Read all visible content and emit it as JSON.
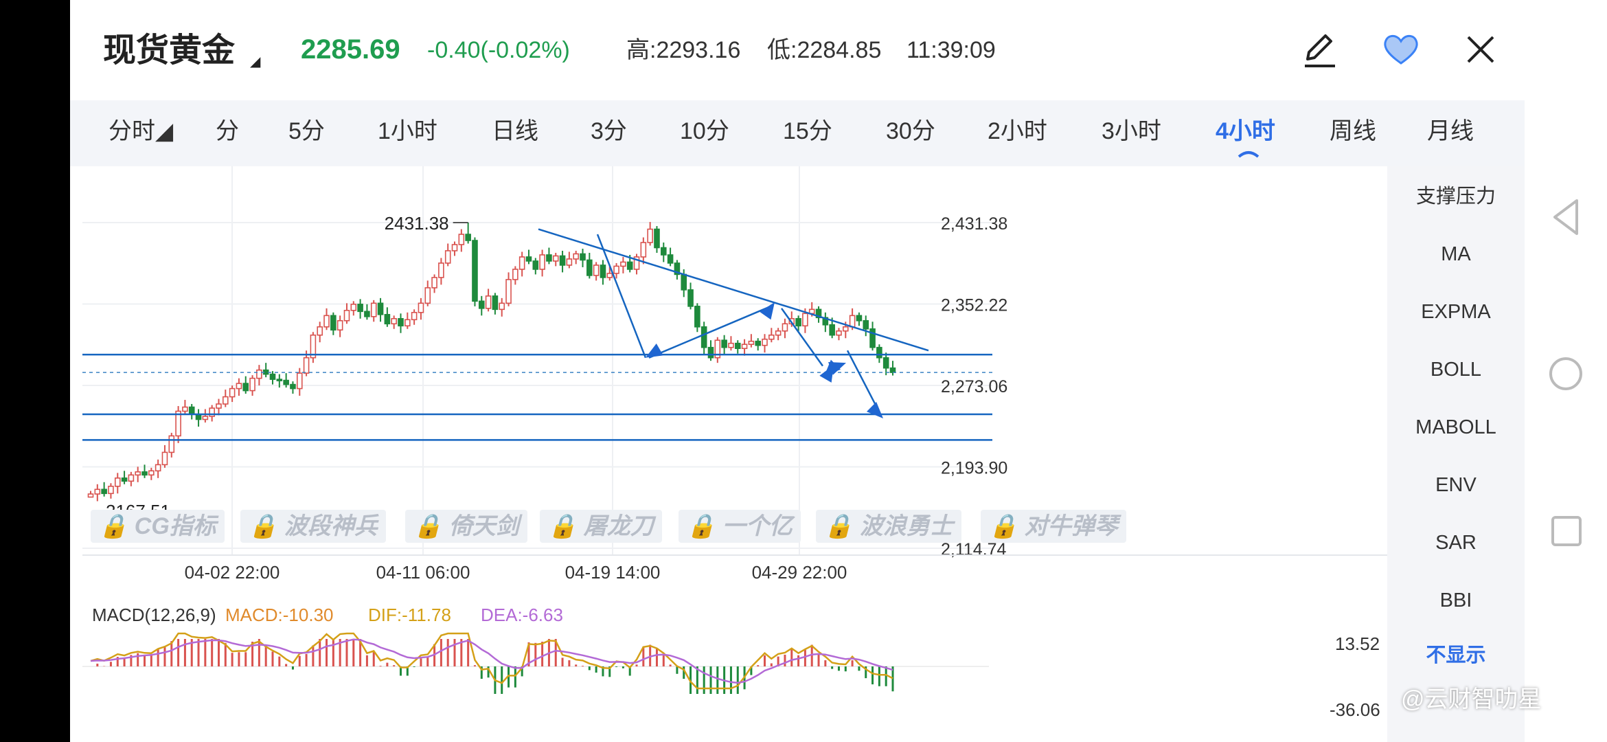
{
  "header": {
    "title": "现货黄金",
    "title_caret": "◢",
    "price": "2285.69",
    "change": "-0.40(-0.02%)",
    "high": "高:2293.16",
    "low": "低:2284.85",
    "time": "11:39:09",
    "icons": [
      "edit-icon",
      "heart-icon",
      "close-icon"
    ],
    "up_color": "#1f9d4f"
  },
  "tabs": [
    {
      "label": "分时◢",
      "active": false
    },
    {
      "label": "分",
      "active": false
    },
    {
      "label": "5分",
      "active": false
    },
    {
      "label": "1小时",
      "active": false
    },
    {
      "label": "日线",
      "active": false
    },
    {
      "label": "3分",
      "active": false
    },
    {
      "label": "10分",
      "active": false
    },
    {
      "label": "15分",
      "active": false
    },
    {
      "label": "30分",
      "active": false
    },
    {
      "label": "2小时",
      "active": false
    },
    {
      "label": "3小时",
      "active": false
    },
    {
      "label": "4小时",
      "active": true
    },
    {
      "label": "周线",
      "active": false
    },
    {
      "label": "月线",
      "active": false
    }
  ],
  "indicator_chips": [
    "CG指标",
    "波段神兵",
    "倚天剑",
    "屠龙刀",
    "一个亿",
    "波浪勇士",
    "对牛弹琴"
  ],
  "right_panel": {
    "items": [
      "支撑压力",
      "MA",
      "EXPMA",
      "BOLL",
      "MABOLL",
      "ENV",
      "SAR",
      "BBI",
      "不显示"
    ],
    "active": "不显示"
  },
  "macd_header": {
    "name": "MACD(12,26,9)",
    "macd": "MACD:-10.30",
    "dif": "DIF:-11.78",
    "dea": "DEA:-6.63",
    "macd_color": "#e08a2b",
    "dif_color": "#d4a017",
    "dea_color": "#b36ad6",
    "y_labels": [
      "13.52",
      "-36.06"
    ]
  },
  "annotations": {
    "max_label": "2431.38",
    "min_label": "2167.51"
  },
  "watermark": "@云财智叻星",
  "chart_data": {
    "type": "candlestick",
    "title": "",
    "y_ticks": [
      "2,431.38",
      "2,352.22",
      "2,273.06",
      "2,193.90",
      "2,114.74"
    ],
    "y_range": [
      2114.74,
      2431.38
    ],
    "x_labels": [
      "04-02 22:00",
      "04-11 06:00",
      "04-19 14:00",
      "04-29 22:00"
    ],
    "last_price": 2285.69,
    "high": 2431.38,
    "low": 2167.51,
    "support_lines": [
      2303.0,
      2245.0,
      2220.0
    ],
    "up_color": "#d9534f",
    "down_color": "#1e8a3c",
    "line_color": "#1565c0",
    "close_path": [
      2167.5,
      2172,
      2168,
      2175,
      2183,
      2180,
      2186,
      2189,
      2186,
      2190,
      2196,
      2208,
      2224,
      2248,
      2252,
      2245,
      2240,
      2243,
      2251,
      2255,
      2262,
      2270,
      2275,
      2268,
      2280,
      2288,
      2284,
      2279,
      2278,
      2274,
      2270,
      2285,
      2300,
      2322,
      2330,
      2341,
      2327,
      2336,
      2346,
      2352,
      2345,
      2340,
      2353,
      2342,
      2333,
      2338,
      2331,
      2337,
      2344,
      2353,
      2368,
      2378,
      2392,
      2404,
      2410,
      2420,
      2414,
      2355,
      2348,
      2360,
      2347,
      2353,
      2376,
      2386,
      2398,
      2394,
      2386,
      2400,
      2394,
      2399,
      2390,
      2396,
      2401,
      2395,
      2380,
      2390,
      2378,
      2382,
      2389,
      2393,
      2386,
      2398,
      2412,
      2425,
      2407,
      2400,
      2392,
      2381,
      2366,
      2350,
      2330,
      2310,
      2300,
      2317,
      2310,
      2314,
      2309,
      2313,
      2316,
      2312,
      2318,
      2322,
      2326,
      2333,
      2338,
      2331,
      2343,
      2347,
      2339,
      2332,
      2322,
      2326,
      2330,
      2341,
      2336,
      2328,
      2310,
      2300,
      2290,
      2285.69
    ]
  }
}
